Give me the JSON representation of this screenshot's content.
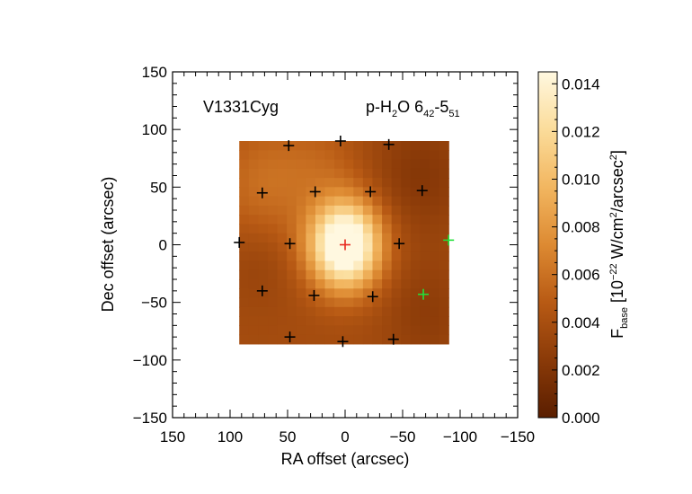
{
  "chart_data": {
    "type": "heatmap",
    "annotation_left": "V1331Cyg",
    "annotation_right": {
      "species_a": "p-H",
      "species_sub": "2",
      "species_b": "O 6",
      "upper_sub": "42",
      "dash": "-5",
      "lower_sub": "51"
    },
    "xlabel": "RA offset (arcsec)",
    "ylabel": "Dec offset (arcsec)",
    "xlim": [
      150,
      -150
    ],
    "ylim": [
      -150,
      150
    ],
    "x_ticks": [
      150,
      100,
      50,
      0,
      -50,
      -100,
      -150
    ],
    "x_tick_labels": [
      "150",
      "100",
      "50",
      "0",
      "−50",
      "−100",
      "−150"
    ],
    "y_ticks": [
      150,
      100,
      50,
      0,
      -50,
      -100,
      -150
    ],
    "y_tick_labels": [
      "150",
      "100",
      "50",
      "0",
      "−50",
      "−100",
      "−150"
    ],
    "map_extent": {
      "ra": [
        92,
        -90
      ],
      "dec": [
        -86,
        90
      ]
    },
    "grid_size": 22,
    "flux_peak": 0.0142,
    "peak_position": [
      0,
      0
    ],
    "spaxels": [
      {
        "ra": 0,
        "dec": 0,
        "color": "#e8281e"
      },
      {
        "ra": 49,
        "dec": 86,
        "color": "#000000"
      },
      {
        "ra": 4,
        "dec": 90,
        "color": "#000000"
      },
      {
        "ra": -38,
        "dec": 87,
        "color": "#000000"
      },
      {
        "ra": 72,
        "dec": 45,
        "color": "#000000"
      },
      {
        "ra": 26,
        "dec": 46,
        "color": "#000000"
      },
      {
        "ra": -22,
        "dec": 46,
        "color": "#000000"
      },
      {
        "ra": -67,
        "dec": 47,
        "color": "#000000"
      },
      {
        "ra": 92,
        "dec": 2,
        "color": "#000000"
      },
      {
        "ra": 48,
        "dec": 1,
        "color": "#000000"
      },
      {
        "ra": -47,
        "dec": 1,
        "color": "#000000"
      },
      {
        "ra": -90,
        "dec": 4,
        "color": "#22e03a"
      },
      {
        "ra": 72,
        "dec": -40,
        "color": "#000000"
      },
      {
        "ra": 27,
        "dec": -44,
        "color": "#000000"
      },
      {
        "ra": -24,
        "dec": -45,
        "color": "#000000"
      },
      {
        "ra": -68,
        "dec": -43,
        "color": "#22e03a"
      },
      {
        "ra": 48,
        "dec": -80,
        "color": "#000000"
      },
      {
        "ra": 2,
        "dec": -84,
        "color": "#000000"
      },
      {
        "ra": -42,
        "dec": -82,
        "color": "#000000"
      }
    ],
    "colorbar": {
      "range": [
        0.0,
        0.0145
      ],
      "ticks": [
        0.0,
        0.002,
        0.004,
        0.006,
        0.008,
        0.01,
        0.012,
        0.014
      ],
      "tick_labels": [
        "0.000",
        "0.002",
        "0.004",
        "0.006",
        "0.008",
        "0.010",
        "0.012",
        "0.014"
      ],
      "label": {
        "f": "F",
        "f_sub": "base",
        "units_a": " [10",
        "exp": "−22",
        "units_b": " W/cm",
        "sq1": "2",
        "units_c": "/arcsec",
        "sq2": "2",
        "units_d": "]"
      },
      "colormap": [
        "#5a1e00",
        "#8a3a08",
        "#b85a14",
        "#dd8a32",
        "#f2b660",
        "#fbdc9a",
        "#fff8e0"
      ]
    }
  }
}
